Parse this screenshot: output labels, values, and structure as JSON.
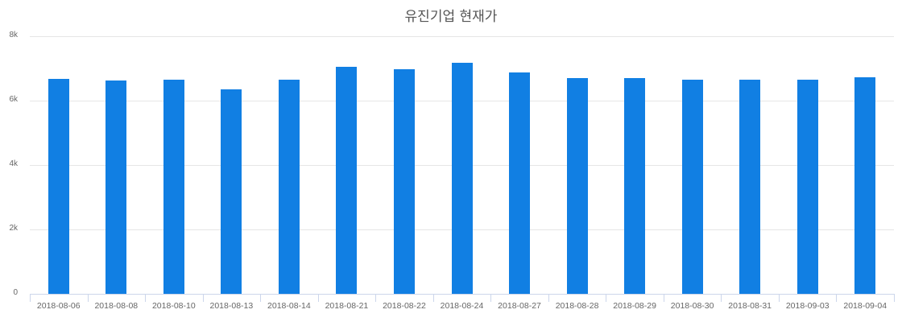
{
  "chart_data": {
    "type": "bar",
    "title": "유진기업 현재가",
    "xlabel": "",
    "ylabel": "",
    "ylim": [
      0,
      8000
    ],
    "yticks": [
      0,
      2000,
      4000,
      6000,
      8000
    ],
    "ytick_labels": [
      "0",
      "2k",
      "4k",
      "6k",
      "8k"
    ],
    "grid": true,
    "legend": "none",
    "bar_color": "#117fe3",
    "categories": [
      "2018-08-06",
      "2018-08-08",
      "2018-08-10",
      "2018-08-13",
      "2018-08-14",
      "2018-08-21",
      "2018-08-22",
      "2018-08-24",
      "2018-08-27",
      "2018-08-28",
      "2018-08-29",
      "2018-08-30",
      "2018-08-31",
      "2018-09-03",
      "2018-09-04"
    ],
    "values": [
      6680,
      6630,
      6650,
      6350,
      6650,
      7040,
      6970,
      7170,
      6870,
      6700,
      6700,
      6650,
      6650,
      6650,
      6730
    ]
  }
}
